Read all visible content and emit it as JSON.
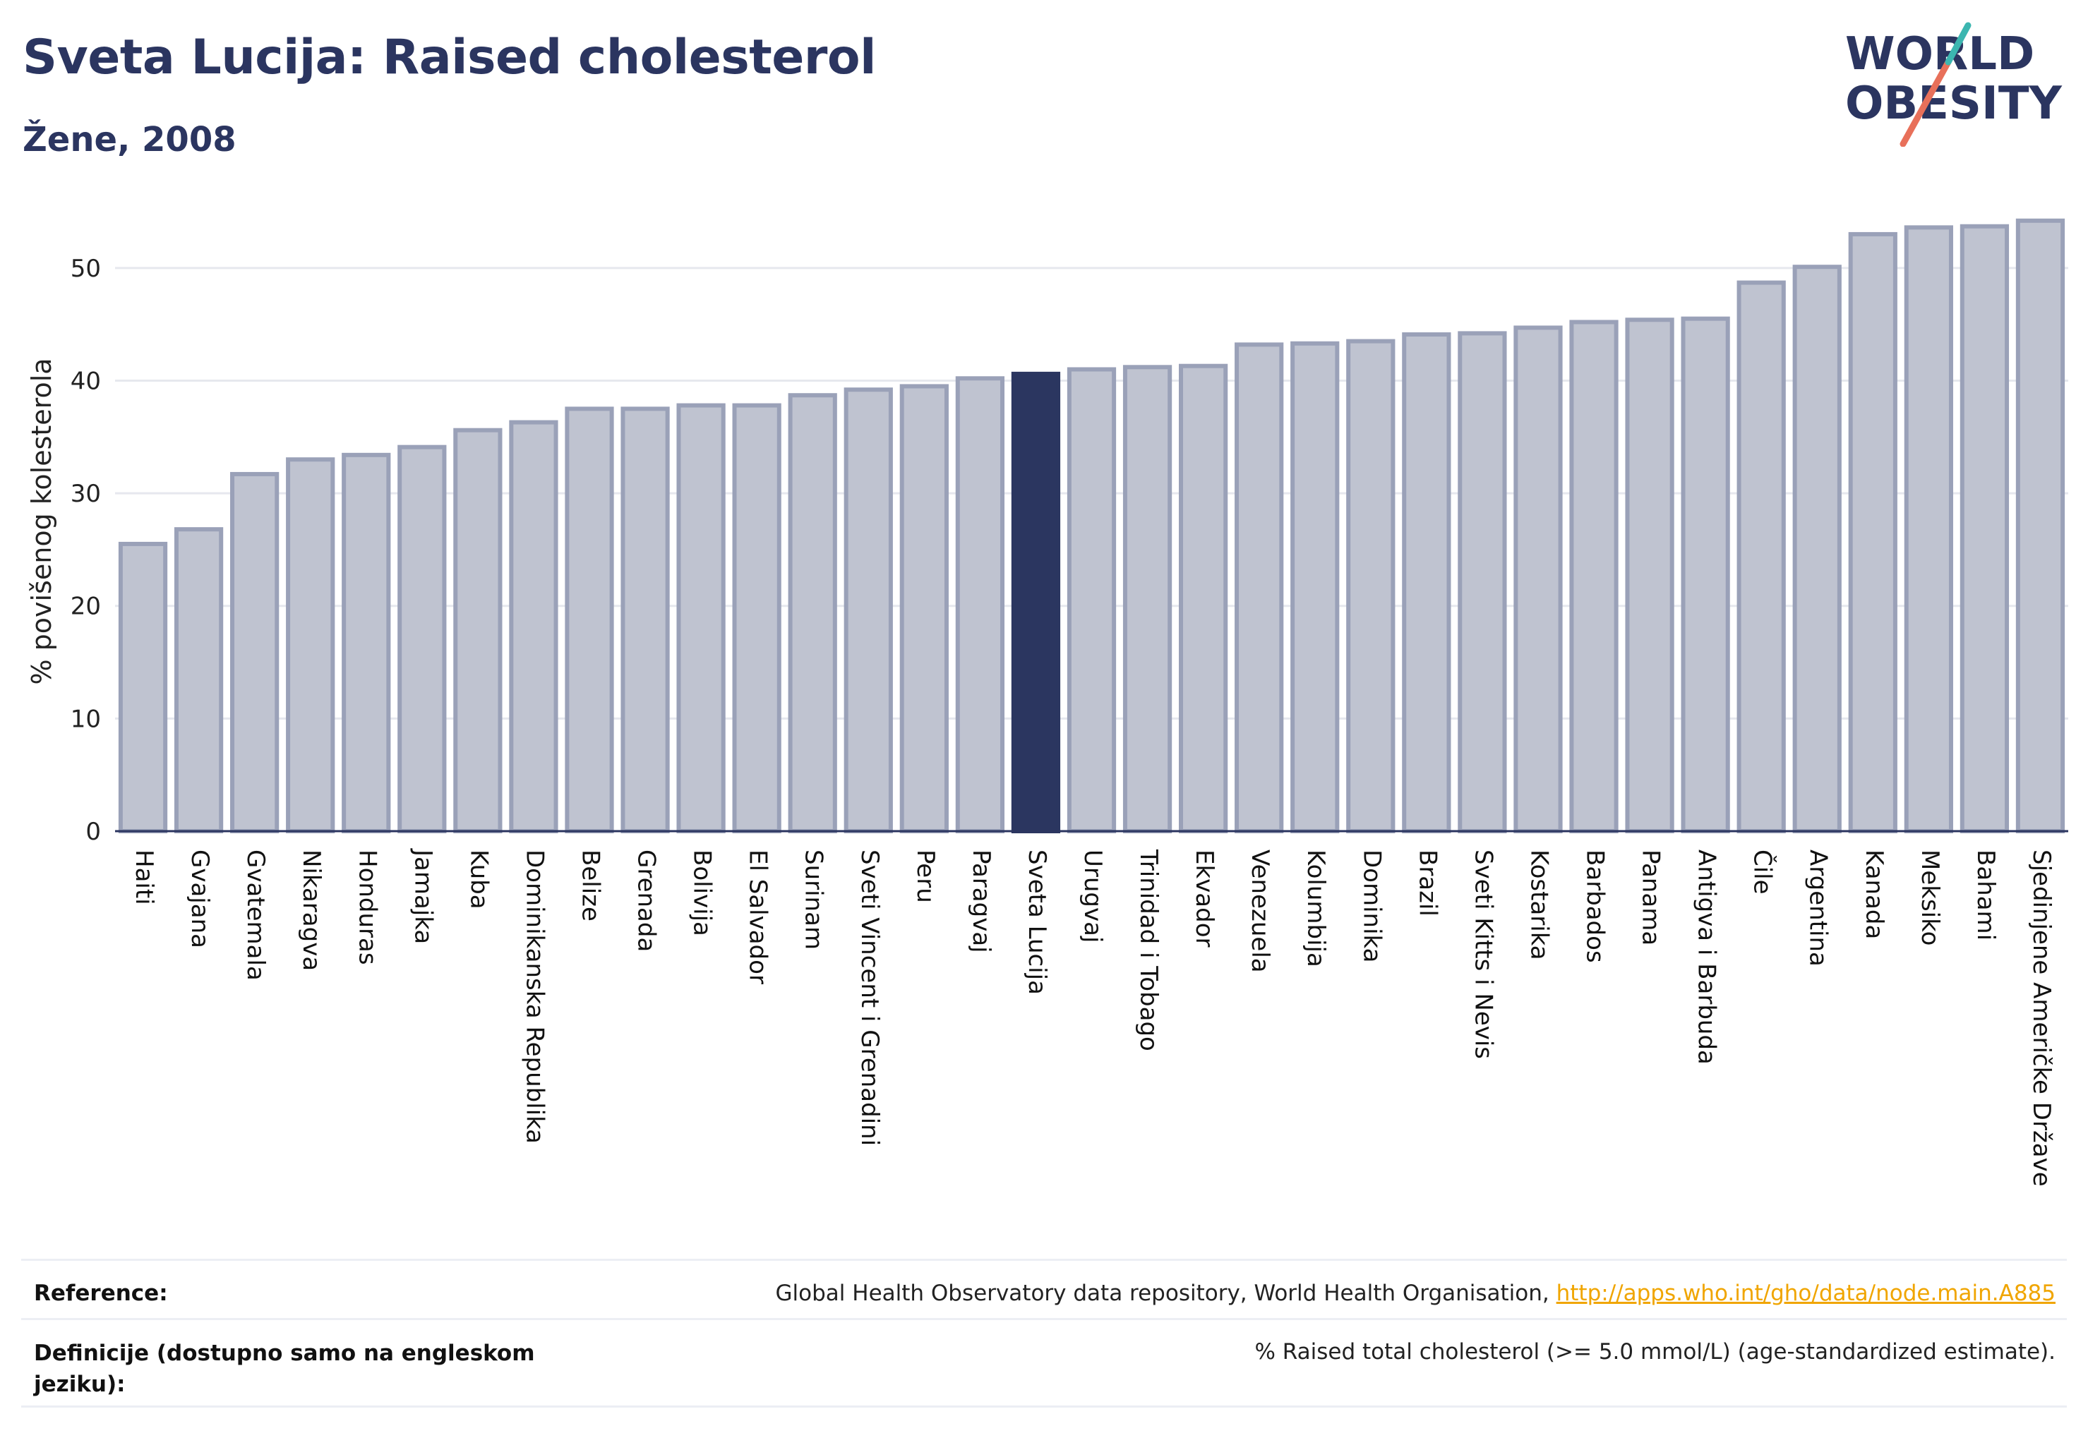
{
  "header": {
    "title": "Sveta Lucija: Raised cholesterol",
    "subtitle": "Žene, 2008"
  },
  "logo": {
    "line1": "WORLD",
    "line2": "OBESITY"
  },
  "chart_data": {
    "type": "bar",
    "ylabel": "% povišenog kolesterola",
    "xlabel": "",
    "ylim": [
      0,
      55
    ],
    "yticks": [
      0,
      10,
      20,
      30,
      40,
      50
    ],
    "grid": true,
    "highlight": "Sveta Lucija",
    "colors": {
      "bar": "#bfc3d0",
      "bar_edge": "#9aa1b8",
      "highlight": "#2b3660",
      "axis": "#2b3560",
      "grid": "#e6e8ee"
    },
    "categories": [
      "Haiti",
      "Gvajana",
      "Gvatemala",
      "Nikaragva",
      "Honduras",
      "Jamajka",
      "Kuba",
      "Dominikanska Republika",
      "Belize",
      "Grenada",
      "Bolivija",
      "El Salvador",
      "Surinam",
      "Sveti Vincent i Grenadini",
      "Peru",
      "Paragvaj",
      "Sveta Lucija",
      "Urugvaj",
      "Trinidad i Tobago",
      "Ekvador",
      "Venezuela",
      "Kolumbija",
      "Dominika",
      "Brazil",
      "Sveti Kitts i Nevis",
      "Kostarika",
      "Barbados",
      "Panama",
      "Antigva i Barbuda",
      "Čile",
      "Argentina",
      "Kanada",
      "Meksiko",
      "Bahami",
      "Sjedinjene Američke Države"
    ],
    "values": [
      25.5,
      26.8,
      31.7,
      33.0,
      33.4,
      34.1,
      35.6,
      36.3,
      37.5,
      37.5,
      37.8,
      37.8,
      38.7,
      39.2,
      39.5,
      40.2,
      40.6,
      41.0,
      41.2,
      41.3,
      43.2,
      43.3,
      43.5,
      44.1,
      44.2,
      44.7,
      45.2,
      45.4,
      45.5,
      48.7,
      50.1,
      53.0,
      53.6,
      53.7,
      54.2
    ]
  },
  "footer": {
    "reference_label": "Reference:",
    "reference_text": "Global Health Observatory data repository, World Health Organisation, ",
    "reference_link": "http://apps.who.int/gho/data/node.main.A885",
    "definition_label": "Definicije (dostupno samo na engleskom jeziku):",
    "definition_text": "% Raised total cholesterol (>= 5.0 mmol/L) (age-standardized estimate)."
  }
}
